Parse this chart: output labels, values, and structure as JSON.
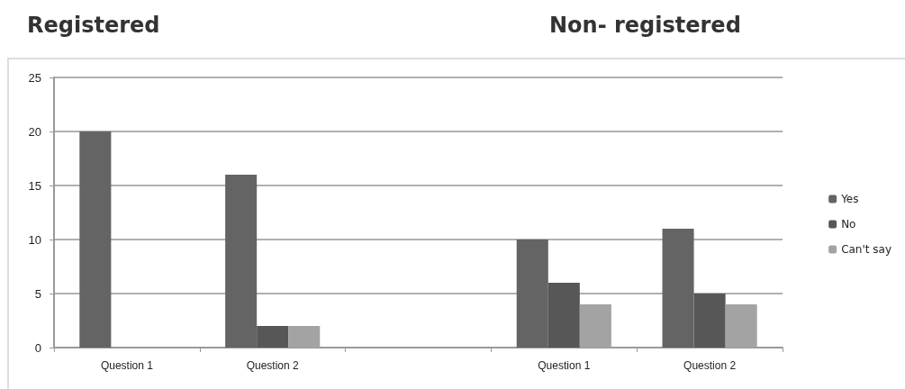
{
  "chart_data": {
    "type": "bar",
    "annotations": [
      "Registered",
      "Non- registered"
    ],
    "categories": [
      "Question 1",
      "Question 2",
      null,
      "Question 1",
      "Question 2"
    ],
    "series": [
      {
        "name": "Yes",
        "color": "#646464",
        "values": [
          20,
          16,
          null,
          10,
          11
        ]
      },
      {
        "name": "No",
        "color": "#575757",
        "values": [
          null,
          2,
          null,
          6,
          5
        ]
      },
      {
        "name": "Can't say",
        "color": "#a3a3a3",
        "values": [
          null,
          2,
          null,
          4,
          4
        ]
      }
    ],
    "ylim": [
      0,
      25
    ],
    "yticks": [
      0,
      5,
      10,
      15,
      20,
      25
    ],
    "grid": "y",
    "legend": "right"
  }
}
